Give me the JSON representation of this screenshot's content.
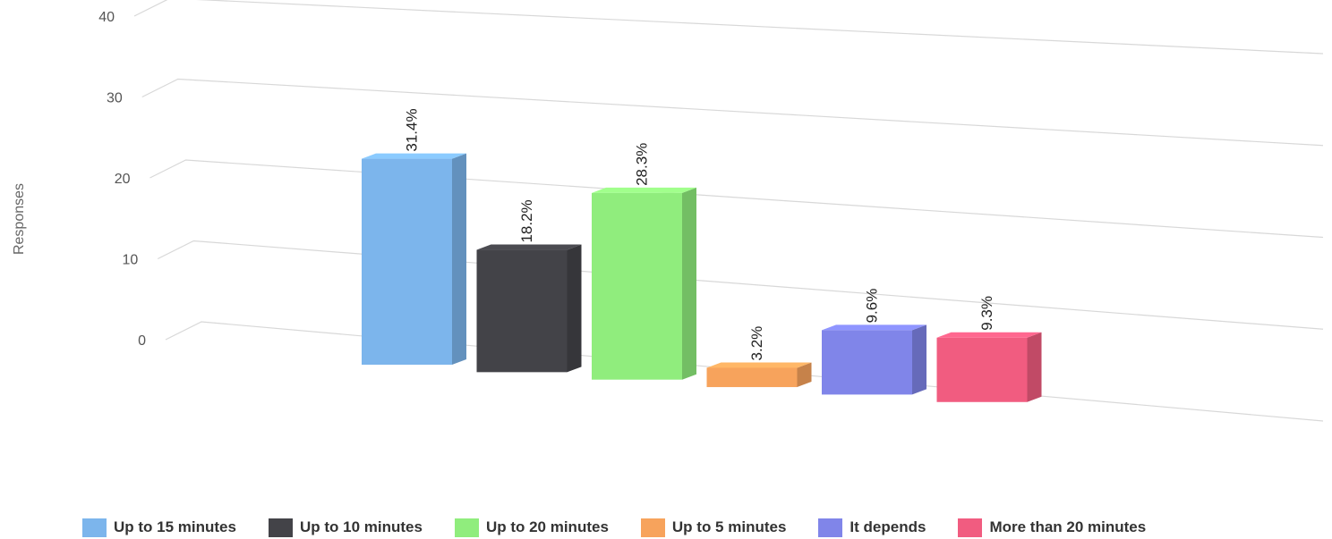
{
  "chart_data": {
    "type": "bar",
    "ylabel": "Responses",
    "ylim": [
      0,
      40
    ],
    "yticks": [
      "0",
      "10",
      "20",
      "30",
      "40"
    ],
    "grid": true,
    "legend_position": "bottom",
    "categories": [
      "Up to 15 minutes",
      "Up to 10 minutes",
      "Up to 20 minutes",
      "Up to 5 minutes",
      "It depends",
      "More than 20 minutes"
    ],
    "values": [
      32,
      19,
      29,
      3,
      10,
      10
    ],
    "data_labels": [
      "31.4%",
      "18.2%",
      "28.3%",
      "3.2%",
      "9.6%",
      "9.3%"
    ],
    "colors": [
      "#7cb5ec",
      "#434348",
      "#90ed7d",
      "#f7a35c",
      "#8085e9",
      "#f15c80"
    ]
  }
}
